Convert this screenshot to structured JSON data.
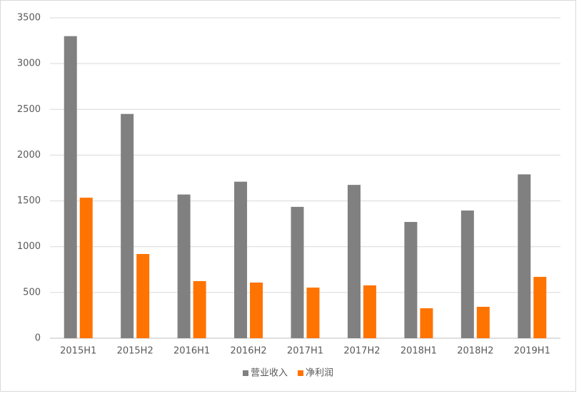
{
  "chart_data": {
    "type": "bar",
    "categories": [
      "2015H1",
      "2015H2",
      "2016H1",
      "2016H2",
      "2017H1",
      "2017H2",
      "2018H1",
      "2018H2",
      "2019H1"
    ],
    "series": [
      {
        "name": "营业收入",
        "color": "#808080",
        "values": [
          3300,
          2450,
          1570,
          1710,
          1435,
          1675,
          1270,
          1395,
          1790
        ]
      },
      {
        "name": "净利润",
        "color": "#ff7300",
        "values": [
          1535,
          920,
          624,
          608,
          553,
          577,
          327,
          343,
          670
        ]
      }
    ],
    "ylim": [
      0,
      3500
    ],
    "yticks": [
      0,
      500,
      1000,
      1500,
      2000,
      2500,
      3000,
      3500
    ],
    "grid": true,
    "legend": "bottom"
  }
}
